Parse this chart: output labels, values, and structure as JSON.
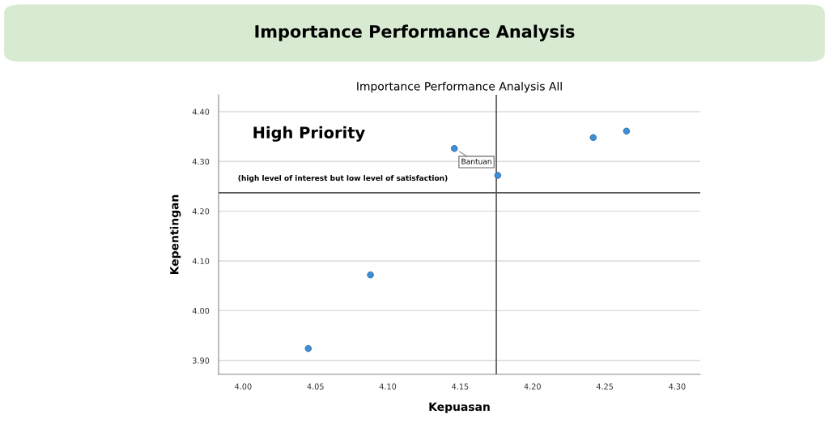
{
  "chart_data": {
    "type": "scatter",
    "title": "Importance Performance Analysis",
    "subtitle": "Importance Performance Analysis All",
    "xlabel": "Kepuasan",
    "ylabel": "Kepentingan",
    "x": [
      4.045,
      4.088,
      4.146,
      4.176,
      4.242,
      4.265
    ],
    "series": [
      {
        "color": "#3d8fd6",
        "values": [
          3.924,
          4.072,
          4.326,
          4.272,
          4.348,
          4.361
        ]
      }
    ],
    "xlim": [
      3.983,
      4.316
    ],
    "ylim": [
      3.872,
      4.434
    ],
    "xticks": [
      {
        "value": 4.0,
        "label": "4.00"
      },
      {
        "value": 4.05,
        "label": "4.05"
      },
      {
        "value": 4.1,
        "label": "4.10"
      },
      {
        "value": 4.15,
        "label": "4.15"
      },
      {
        "value": 4.2,
        "label": "4.20"
      },
      {
        "value": 4.25,
        "label": "4.25"
      },
      {
        "value": 4.3,
        "label": "4.30"
      }
    ],
    "yticks": [
      {
        "value": 3.9,
        "label": "3.90"
      },
      {
        "value": 4.0,
        "label": "4.00"
      },
      {
        "value": 4.1,
        "label": "4.10"
      },
      {
        "value": 4.2,
        "label": "4.20"
      },
      {
        "value": 4.3,
        "label": "4.30"
      },
      {
        "value": 4.4,
        "label": "4.40"
      }
    ],
    "ref_lines": [
      {
        "axis": "x",
        "value": 4.175,
        "color": "#555555"
      },
      {
        "axis": "y",
        "value": 4.237,
        "color": "#555555"
      }
    ],
    "annotations": [
      "High Priority",
      "(high level of interest but low level of satisfaction)",
      {
        "text": "Bantuan",
        "x": 4.146,
        "y": 4.326
      }
    ],
    "grid": "y",
    "marker": "circle",
    "legend": false
  }
}
